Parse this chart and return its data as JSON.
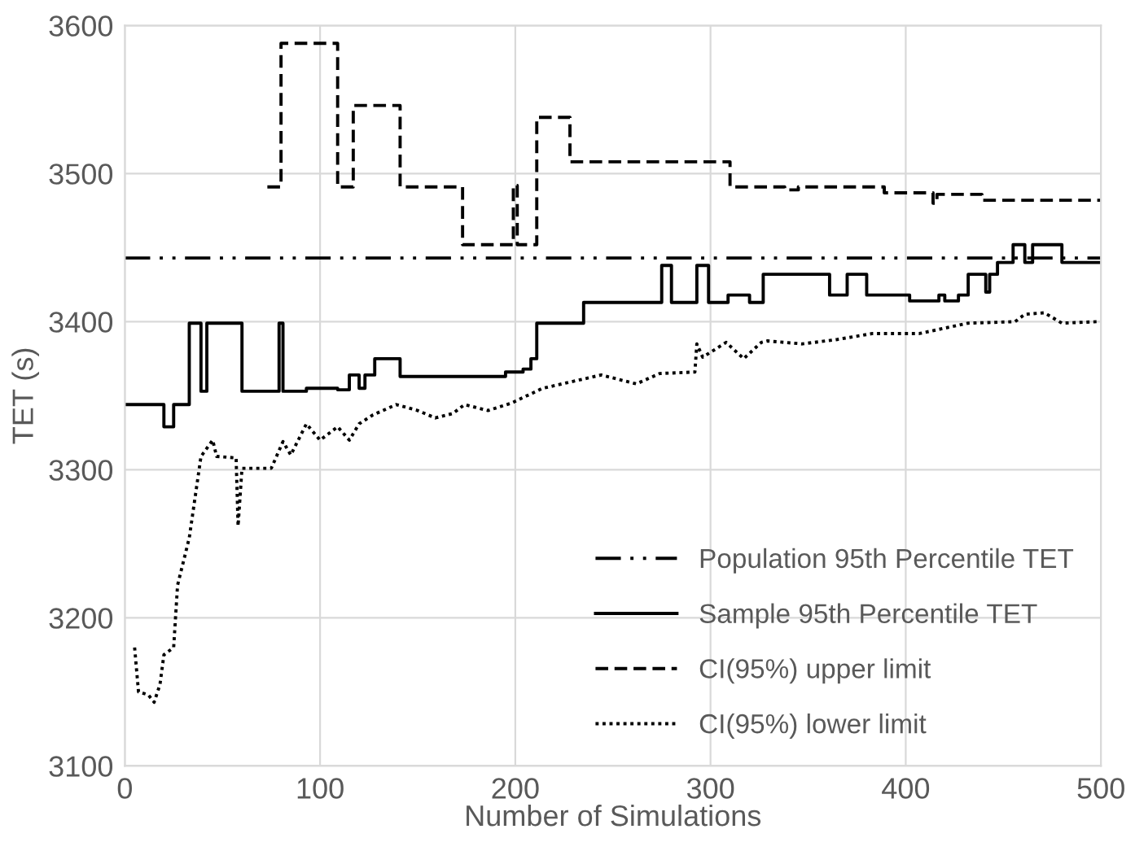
{
  "chart_data": {
    "type": "line",
    "xlabel": "Number of Simulations",
    "ylabel": "TET (s)",
    "xlim": [
      0,
      500
    ],
    "xticks": [
      0,
      100,
      200,
      300,
      400,
      500
    ],
    "ylim": [
      3100,
      3600
    ],
    "yticks": [
      3100,
      3200,
      3300,
      3400,
      3500,
      3600
    ],
    "grid": true,
    "legend": "bottom right",
    "marker": "none",
    "series": [
      {
        "name": "Population 95th Percentile TET",
        "color": "#000000",
        "line_style": "dashdot",
        "x": [
          0,
          500
        ],
        "values": [
          3443,
          3443
        ]
      },
      {
        "name": "Sample 95th Percentile TET",
        "color": "#000000",
        "line_style": "solid",
        "type": "step",
        "x": [
          0,
          20,
          25,
          33,
          39,
          42,
          60,
          79,
          81,
          93,
          109,
          115,
          120,
          123,
          128,
          141,
          190,
          195,
          204,
          208,
          211,
          235,
          275,
          280,
          293,
          299,
          309,
          320,
          327,
          361,
          370,
          380,
          402,
          417,
          420,
          427,
          432,
          441,
          443,
          447,
          455,
          461,
          465,
          480,
          500
        ],
        "values": [
          3344,
          3329,
          3344,
          3399,
          3353,
          3399,
          3353,
          3399,
          3353,
          3355,
          3354,
          3364,
          3355,
          3364,
          3375,
          3363,
          3363,
          3366,
          3368,
          3375,
          3399,
          3413,
          3438,
          3413,
          3438,
          3413,
          3418,
          3413,
          3432,
          3418,
          3432,
          3418,
          3414,
          3418,
          3414,
          3418,
          3432,
          3420,
          3432,
          3440,
          3452,
          3440,
          3452,
          3440,
          3440
        ]
      },
      {
        "name": "CI(95%) upper limit",
        "color": "#000000",
        "line_style": "dashed",
        "type": "step",
        "x": [
          73,
          80,
          109,
          117,
          141,
          173,
          199,
          201,
          211,
          228,
          310,
          338,
          345,
          389,
          414,
          416,
          439,
          500
        ],
        "values": [
          3491,
          3588,
          3491,
          3546,
          3491,
          3452,
          3492,
          3452,
          3538,
          3508,
          3491,
          3489,
          3491,
          3487,
          3480,
          3486,
          3482,
          3481
        ]
      },
      {
        "name": "CI(95%) lower limit",
        "color": "#000000",
        "line_style": "dotted",
        "x": [
          5,
          7,
          12,
          15,
          18,
          20,
          25,
          27,
          33,
          39,
          45,
          47,
          57,
          58,
          60,
          75,
          81,
          85,
          93,
          100,
          109,
          115,
          120,
          127,
          139,
          150,
          159,
          168,
          174,
          186,
          198,
          214,
          244,
          262,
          274,
          292,
          293,
          296,
          308,
          317,
          326,
          329,
          347,
          365,
          383,
          407,
          432,
          456,
          461,
          471,
          480,
          498
        ],
        "values": [
          3180,
          3150,
          3148,
          3143,
          3155,
          3175,
          3180,
          3222,
          3254,
          3309,
          3320,
          3309,
          3308,
          3262,
          3301,
          3301,
          3319,
          3310,
          3331,
          3320,
          3329,
          3320,
          3331,
          3337,
          3344,
          3340,
          3335,
          3338,
          3344,
          3340,
          3345,
          3355,
          3364,
          3358,
          3365,
          3366,
          3385,
          3376,
          3386,
          3375,
          3386,
          3387,
          3385,
          3388,
          3392,
          3392,
          3399,
          3400,
          3405,
          3406,
          3399,
          3400
        ]
      }
    ]
  }
}
